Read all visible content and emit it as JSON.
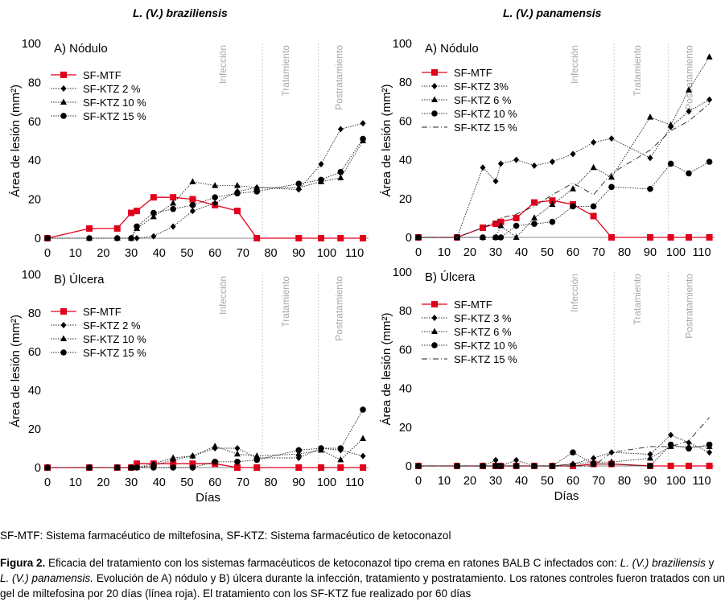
{
  "titles": {
    "left": "L. (V.) braziliensis",
    "right": "L. (V.) panamensis"
  },
  "phase_labels": [
    "Infección",
    "Tratamiento",
    "Postratamiento"
  ],
  "abbreviations": "SF-MTF: Sistema farmacéutico de miltefosina, SF-KTZ: Sistema farmacéutico de ketoconazol",
  "figure_caption": {
    "label": "Figura 2.",
    "text_1": " Eficacia del tratamiento con los sistemas farmacéuticos de ketoconazol tipo crema en ratones BALB C infectados con: ",
    "species_1": "L. (V.) braziliensis",
    "text_2": " y ",
    "species_2": "L. (V.) panamensis.",
    "text_3": " Evolución de A) nódulo y B) úlcera durante la infección, tratamiento y postratamiento. Los ratones controles fueron tratados con un gel de miltefosina por 20 días (línea roja). El tratamiento con los SF-KTZ fue realizado por 60 días"
  },
  "chart_data": [
    {
      "type": "line",
      "panel_label": "A) Nódulo",
      "xlabel": "",
      "ylabel": "Área de lesión (mm²)",
      "xlim": [
        0,
        115
      ],
      "ylim": [
        0,
        100
      ],
      "xticks": [
        0,
        10,
        20,
        30,
        40,
        50,
        60,
        70,
        80,
        90,
        100,
        110
      ],
      "yticks": [
        0,
        20,
        40,
        60,
        80,
        100
      ],
      "phase_lines": [
        77,
        97
      ],
      "series": [
        {
          "name": "SF-MTF",
          "marker": "square",
          "line": "solid",
          "color": "#e0001b",
          "x": [
            0,
            15,
            25,
            30,
            32,
            38,
            45,
            52,
            60,
            68,
            75,
            90,
            98,
            105,
            113
          ],
          "y": [
            0,
            5,
            5,
            13,
            14,
            21,
            21,
            20,
            17,
            14,
            0,
            0,
            0,
            0,
            0
          ]
        },
        {
          "name": "SF-KTZ 2 %",
          "marker": "diamond",
          "line": "dotted",
          "color": "#000",
          "x": [
            0,
            15,
            25,
            30,
            32,
            38,
            45,
            52,
            60,
            68,
            75,
            90,
            98,
            105,
            113
          ],
          "y": [
            0,
            0,
            0,
            0,
            0,
            1,
            6,
            14,
            18,
            24,
            26,
            25,
            38,
            56,
            59
          ]
        },
        {
          "name": "SF-KTZ 10 %",
          "marker": "triangle",
          "line": "dotted",
          "color": "#000",
          "x": [
            0,
            15,
            25,
            30,
            32,
            38,
            45,
            52,
            60,
            68,
            75,
            90,
            98,
            105,
            113
          ],
          "y": [
            0,
            0,
            0,
            0,
            5,
            11,
            18,
            29,
            27,
            27,
            26,
            26,
            29,
            31,
            50
          ]
        },
        {
          "name": "SF-KTZ 15 %",
          "marker": "circle",
          "line": "dotted",
          "color": "#000",
          "x": [
            0,
            15,
            25,
            30,
            32,
            38,
            45,
            52,
            60,
            68,
            75,
            90,
            98,
            105,
            113
          ],
          "y": [
            0,
            0,
            0,
            0,
            6,
            13,
            15,
            17,
            21,
            23,
            24,
            28,
            30,
            34,
            51
          ]
        }
      ]
    },
    {
      "type": "line",
      "panel_label": "A) Nódulo",
      "xlabel": "",
      "ylabel": "Área de lesión (mm²)",
      "xlim": [
        0,
        115
      ],
      "ylim": [
        0,
        100
      ],
      "xticks": [
        0,
        10,
        20,
        30,
        40,
        50,
        60,
        70,
        80,
        90,
        100,
        110
      ],
      "yticks": [
        0,
        20,
        40,
        60,
        80,
        100
      ],
      "phase_lines": [
        76,
        97
      ],
      "series": [
        {
          "name": "SF-MTF",
          "marker": "square",
          "line": "solid",
          "color": "#e0001b",
          "x": [
            0,
            15,
            25,
            30,
            32,
            38,
            45,
            52,
            60,
            68,
            75,
            90,
            98,
            105,
            113
          ],
          "y": [
            0,
            0,
            5,
            7,
            8,
            10,
            18,
            19,
            17,
            11,
            0,
            0,
            0,
            0,
            0
          ]
        },
        {
          "name": "SF-KTZ 3%",
          "marker": "diamond",
          "line": "dotted",
          "color": "#000",
          "x": [
            0,
            15,
            25,
            30,
            32,
            38,
            45,
            52,
            60,
            68,
            75,
            90,
            98,
            105,
            113
          ],
          "y": [
            0,
            0,
            36,
            29,
            38,
            40,
            37,
            39,
            43,
            49,
            51,
            41,
            57,
            65,
            71
          ]
        },
        {
          "name": "SF-KTZ 6 %",
          "marker": "triangle",
          "line": "dotted",
          "color": "#000",
          "x": [
            0,
            15,
            25,
            30,
            32,
            38,
            45,
            52,
            60,
            68,
            75,
            90,
            98,
            105,
            113
          ],
          "y": [
            0,
            0,
            0,
            0,
            6,
            0,
            10,
            17,
            25,
            36,
            31,
            62,
            58,
            76,
            93
          ]
        },
        {
          "name": "SF-KTZ 10 %",
          "marker": "circle",
          "line": "dotted",
          "color": "#000",
          "x": [
            0,
            15,
            25,
            30,
            32,
            38,
            45,
            52,
            60,
            68,
            75,
            90,
            98,
            105,
            113
          ],
          "y": [
            0,
            0,
            0,
            0,
            0,
            6,
            7,
            8,
            16,
            16,
            26,
            25,
            38,
            33,
            39
          ]
        },
        {
          "name": "SF-KTZ 15 %",
          "marker": "none",
          "line": "dashdot",
          "color": "#000",
          "x": [
            0,
            15,
            25,
            30,
            32,
            38,
            45,
            52,
            60,
            68,
            75,
            90,
            98,
            105,
            113
          ],
          "y": [
            0,
            0,
            5,
            8,
            10,
            12,
            16,
            22,
            28,
            22,
            33,
            45,
            55,
            60,
            69
          ]
        }
      ]
    },
    {
      "type": "line",
      "panel_label": "B)  Úlcera",
      "xlabel": "Días",
      "ylabel": "Área de lesión (mm²)",
      "xlim": [
        0,
        115
      ],
      "ylim": [
        0,
        100
      ],
      "xticks": [
        0,
        10,
        20,
        30,
        40,
        50,
        60,
        70,
        80,
        90,
        100,
        110
      ],
      "yticks": [
        0,
        20,
        40,
        60,
        80,
        100
      ],
      "phase_lines": [
        77,
        97
      ],
      "series": [
        {
          "name": "SF-MTF",
          "marker": "square",
          "line": "solid",
          "color": "#e0001b",
          "x": [
            0,
            15,
            25,
            30,
            32,
            38,
            45,
            52,
            60,
            68,
            75,
            90,
            98,
            105,
            113
          ],
          "y": [
            0,
            0,
            0,
            0,
            2,
            2,
            2,
            2,
            2,
            0,
            0,
            0,
            0,
            0,
            0
          ]
        },
        {
          "name": "SF-KTZ 2 %",
          "marker": "diamond",
          "line": "dotted",
          "color": "#000",
          "x": [
            0,
            15,
            25,
            30,
            32,
            38,
            45,
            52,
            60,
            68,
            75,
            90,
            98,
            105,
            113
          ],
          "y": [
            0,
            0,
            0,
            0,
            0,
            1,
            4,
            6,
            10,
            10,
            5,
            5,
            10,
            9,
            6
          ]
        },
        {
          "name": "SF-KTZ 10 %",
          "marker": "triangle",
          "line": "dotted",
          "color": "#000",
          "x": [
            0,
            15,
            25,
            30,
            32,
            38,
            45,
            52,
            60,
            68,
            75,
            90,
            98,
            105,
            113
          ],
          "y": [
            0,
            0,
            0,
            0,
            0,
            2,
            5,
            6,
            11,
            7,
            6,
            7,
            9,
            4,
            15
          ]
        },
        {
          "name": "SF-KTZ 15 %",
          "marker": "circle",
          "line": "dotted",
          "color": "#000",
          "x": [
            0,
            15,
            25,
            30,
            32,
            38,
            45,
            52,
            60,
            68,
            75,
            90,
            98,
            105,
            113
          ],
          "y": [
            0,
            0,
            0,
            0,
            0,
            0,
            0,
            0,
            3,
            3,
            4,
            9,
            10,
            10,
            30
          ]
        }
      ]
    },
    {
      "type": "line",
      "panel_label": "B)  Úlcera",
      "xlabel": "Días",
      "ylabel": "Área de lesión (mm²)",
      "xlim": [
        0,
        115
      ],
      "ylim": [
        0,
        100
      ],
      "xticks": [
        0,
        10,
        20,
        30,
        40,
        50,
        60,
        70,
        80,
        90,
        100,
        110
      ],
      "yticks": [
        0,
        20,
        40,
        60,
        80,
        100
      ],
      "phase_lines": [
        76,
        97
      ],
      "series": [
        {
          "name": "SF-MTF",
          "marker": "square",
          "line": "solid",
          "color": "#e0001b",
          "x": [
            0,
            15,
            25,
            30,
            32,
            38,
            45,
            52,
            60,
            68,
            75,
            90,
            98,
            105,
            113
          ],
          "y": [
            0,
            0,
            0,
            0,
            0,
            0,
            0,
            0,
            0,
            1,
            1,
            0,
            0,
            0,
            0
          ]
        },
        {
          "name": "SF-KTZ 3 %",
          "marker": "diamond",
          "line": "dotted",
          "color": "#000",
          "x": [
            0,
            15,
            25,
            30,
            32,
            38,
            45,
            52,
            60,
            68,
            75,
            90,
            98,
            105,
            113
          ],
          "y": [
            0,
            0,
            0,
            3,
            0,
            3,
            0,
            0,
            1,
            4,
            7,
            6,
            16,
            12,
            7
          ]
        },
        {
          "name": "SF-KTZ 6 %",
          "marker": "triangle",
          "line": "dotted",
          "color": "#000",
          "x": [
            0,
            15,
            25,
            30,
            32,
            38,
            45,
            52,
            60,
            68,
            75,
            90,
            98,
            105,
            113
          ],
          "y": [
            0,
            0,
            0,
            0,
            0,
            0,
            0,
            0,
            1,
            2,
            2,
            4,
            10,
            10,
            10
          ]
        },
        {
          "name": "SF-KTZ 10 %",
          "marker": "circle",
          "line": "dotted",
          "color": "#000",
          "x": [
            0,
            15,
            25,
            30,
            32,
            38,
            45,
            52,
            60,
            68,
            75,
            90,
            98,
            105,
            113
          ],
          "y": [
            0,
            0,
            0,
            0,
            0,
            0,
            0,
            0,
            7,
            1,
            1,
            0,
            11,
            9,
            11
          ]
        },
        {
          "name": "SF-KTZ 15 %",
          "marker": "none",
          "line": "dashdot",
          "color": "#000",
          "x": [
            0,
            15,
            25,
            30,
            32,
            38,
            45,
            52,
            60,
            68,
            75,
            90,
            98,
            105,
            113
          ],
          "y": [
            0,
            0,
            0,
            0,
            0,
            0,
            0,
            0,
            0,
            0,
            7,
            10,
            10,
            13,
            25
          ]
        }
      ]
    }
  ]
}
